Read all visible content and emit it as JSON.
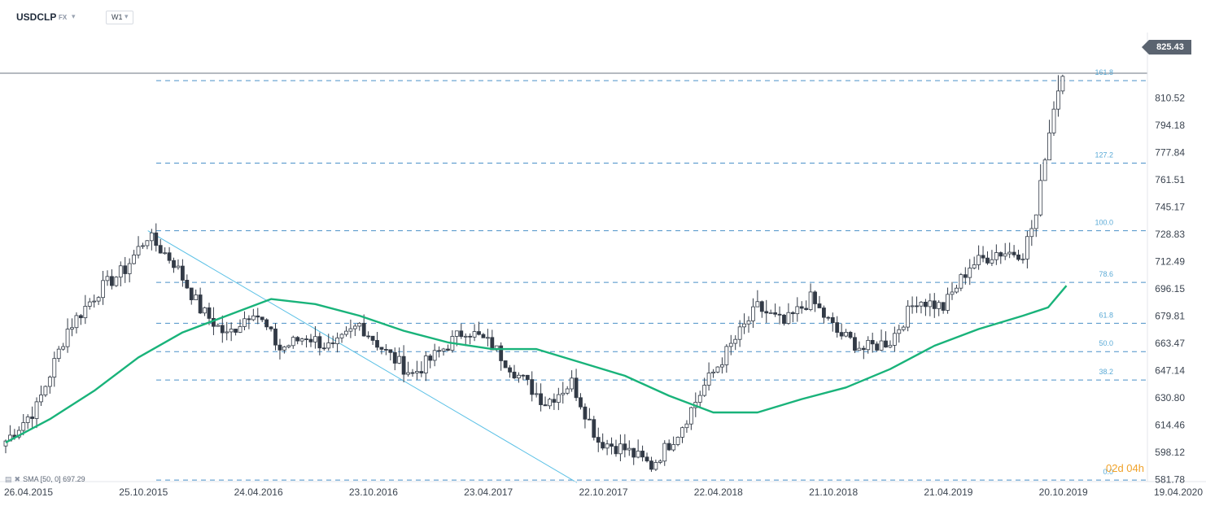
{
  "header": {
    "symbol": "USDCLP",
    "market": "FX",
    "timeframe": "W1"
  },
  "indicator": {
    "label": "SMA [50, 0] 697.29"
  },
  "countdown": {
    "text": "02d 04h"
  },
  "colors": {
    "up_candle": "#ffffff",
    "down_candle": "#323a46",
    "sma": "#19b37a",
    "fib": "#4a90c8",
    "trendline": "#5cc1e6",
    "price_box": "#5b6470"
  },
  "chart_data": {
    "type": "candlestick",
    "symbol": "USDCLP",
    "timeframe": "W1",
    "last_price": 825.43,
    "last_price_label": "825.43",
    "ylim": [
      578,
      860
    ],
    "y_ticks": [
      810.52,
      794.18,
      777.84,
      761.51,
      745.17,
      728.83,
      712.49,
      696.15,
      679.81,
      663.47,
      647.14,
      630.8,
      614.46,
      598.12,
      581.78
    ],
    "x_ticks": [
      "26.04.2015",
      "25.10.2015",
      "24.04.2016",
      "23.10.2016",
      "23.04.2017",
      "22.10.2017",
      "22.04.2018",
      "21.10.2018",
      "21.04.2019",
      "20.10.2019",
      "19.04.2020"
    ],
    "fibonacci_levels": [
      {
        "label": "161.8",
        "value": 821
      },
      {
        "label": "127.2",
        "value": 771.5
      },
      {
        "label": "100.0",
        "value": 731
      },
      {
        "label": "78.6",
        "value": 700
      },
      {
        "label": "61.8",
        "value": 675.5
      },
      {
        "label": "50.0",
        "value": 658.5
      },
      {
        "label": "38.2",
        "value": 641.5
      },
      {
        "label": "0.0",
        "value": 581.5
      }
    ],
    "trendline": [
      {
        "date": "2015-12-07",
        "value": 731
      },
      {
        "date": "2017-10-16",
        "value": 580
      }
    ],
    "sma": {
      "name": "SMA [50, 0]",
      "last": 697.29,
      "points": [
        {
          "date": "2015-04-26",
          "value": 604
        },
        {
          "date": "2015-07-05",
          "value": 618
        },
        {
          "date": "2015-09-13",
          "value": 635
        },
        {
          "date": "2015-11-22",
          "value": 655
        },
        {
          "date": "2016-01-31",
          "value": 670
        },
        {
          "date": "2016-04-10",
          "value": 680
        },
        {
          "date": "2016-06-19",
          "value": 690
        },
        {
          "date": "2016-08-28",
          "value": 687
        },
        {
          "date": "2016-11-06",
          "value": 680
        },
        {
          "date": "2017-01-15",
          "value": 671
        },
        {
          "date": "2017-03-26",
          "value": 664
        },
        {
          "date": "2017-06-04",
          "value": 660
        },
        {
          "date": "2017-08-13",
          "value": 660
        },
        {
          "date": "2017-10-22",
          "value": 652
        },
        {
          "date": "2017-12-31",
          "value": 644
        },
        {
          "date": "2018-03-11",
          "value": 632
        },
        {
          "date": "2018-05-20",
          "value": 622
        },
        {
          "date": "2018-07-29",
          "value": 622
        },
        {
          "date": "2018-10-07",
          "value": 630
        },
        {
          "date": "2018-12-16",
          "value": 637
        },
        {
          "date": "2019-02-24",
          "value": 648
        },
        {
          "date": "2019-05-05",
          "value": 662
        },
        {
          "date": "2019-07-14",
          "value": 672
        },
        {
          "date": "2019-09-22",
          "value": 680
        },
        {
          "date": "2019-11-01",
          "value": 685
        },
        {
          "date": "2019-11-30",
          "value": 698
        }
      ]
    },
    "ohlc_anchors": [
      {
        "date": "2015-04-26",
        "price": 605
      },
      {
        "date": "2015-06-14",
        "price": 625
      },
      {
        "date": "2015-08-02",
        "price": 672
      },
      {
        "date": "2015-09-20",
        "price": 695
      },
      {
        "date": "2015-11-01",
        "price": 708
      },
      {
        "date": "2015-12-06",
        "price": 728
      },
      {
        "date": "2016-01-17",
        "price": 712
      },
      {
        "date": "2016-02-28",
        "price": 684
      },
      {
        "date": "2016-04-10",
        "price": 668
      },
      {
        "date": "2016-05-22",
        "price": 684
      },
      {
        "date": "2016-07-03",
        "price": 660
      },
      {
        "date": "2016-08-14",
        "price": 668
      },
      {
        "date": "2016-09-25",
        "price": 660
      },
      {
        "date": "2016-11-06",
        "price": 675
      },
      {
        "date": "2016-12-18",
        "price": 658
      },
      {
        "date": "2017-01-29",
        "price": 645
      },
      {
        "date": "2017-03-12",
        "price": 658
      },
      {
        "date": "2017-04-23",
        "price": 672
      },
      {
        "date": "2017-06-04",
        "price": 662
      },
      {
        "date": "2017-07-16",
        "price": 644
      },
      {
        "date": "2017-08-27",
        "price": 628
      },
      {
        "date": "2017-10-08",
        "price": 640
      },
      {
        "date": "2017-11-19",
        "price": 605
      },
      {
        "date": "2017-12-31",
        "price": 600
      },
      {
        "date": "2018-02-11",
        "price": 590
      },
      {
        "date": "2018-03-25",
        "price": 610
      },
      {
        "date": "2018-05-06",
        "price": 638
      },
      {
        "date": "2018-06-17",
        "price": 662
      },
      {
        "date": "2018-07-29",
        "price": 685
      },
      {
        "date": "2018-09-09",
        "price": 675
      },
      {
        "date": "2018-10-21",
        "price": 690
      },
      {
        "date": "2018-12-02",
        "price": 670
      },
      {
        "date": "2019-01-13",
        "price": 660
      },
      {
        "date": "2019-02-24",
        "price": 665
      },
      {
        "date": "2019-04-07",
        "price": 690
      },
      {
        "date": "2019-05-19",
        "price": 685
      },
      {
        "date": "2019-06-30",
        "price": 710
      },
      {
        "date": "2019-08-11",
        "price": 718
      },
      {
        "date": "2019-09-22",
        "price": 718
      },
      {
        "date": "2019-10-13",
        "price": 740
      },
      {
        "date": "2019-10-27",
        "price": 775
      },
      {
        "date": "2019-11-10",
        "price": 805
      },
      {
        "date": "2019-11-24",
        "price": 825.43
      }
    ]
  }
}
